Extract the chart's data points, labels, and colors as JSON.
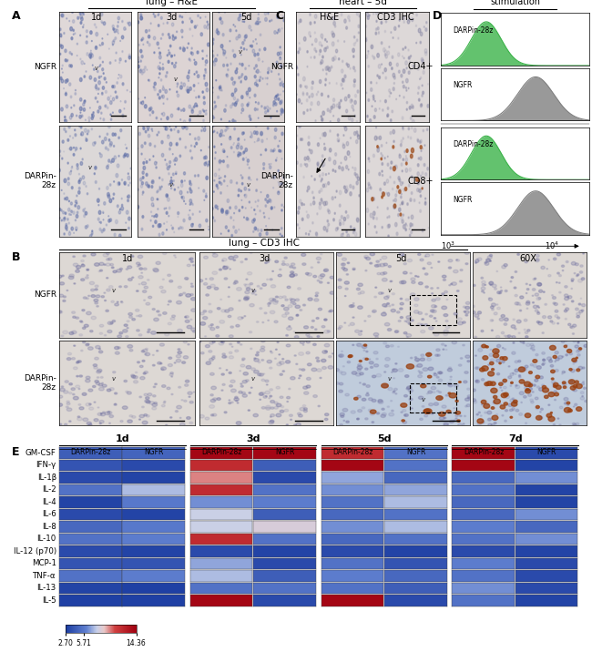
{
  "panel_labels": [
    "A",
    "B",
    "C",
    "D",
    "E"
  ],
  "panel_a_title": "lung – H&E",
  "panel_b_title": "lung – CD3 IHC",
  "panel_c_title": "heart – 5d",
  "panel_d_title": "lung homogenate\nstimulation",
  "time_points_abc": [
    "1d",
    "3d",
    "5d"
  ],
  "time_points_60x": "60X",
  "row_labels_ab": [
    "NGFR",
    "DARPin-\n28z"
  ],
  "col_labels_c": [
    "H&E",
    "CD3 IHC"
  ],
  "cytokines": [
    "GM-CSF",
    "IFN-γ",
    "IL-1β",
    "IL-2",
    "IL-4",
    "IL-6",
    "IL-8",
    "IL-10",
    "IL-12 (p70)",
    "MCP-1",
    "TNF-α",
    "IL-13",
    "IL-5"
  ],
  "time_groups": [
    "1d",
    "3d",
    "5d",
    "7d"
  ],
  "col_headers_e": [
    "DARPin-28z",
    "NGFR"
  ],
  "heatmap_vmin": 2.7,
  "heatmap_vmid": 5.71,
  "heatmap_vmax": 14.36,
  "heatmap_data": {
    "1d": {
      "DARPin-28z": [
        4.5,
        4.0,
        3.5,
        5.5,
        3.2,
        3.5,
        5.0,
        5.5,
        3.5,
        4.0,
        5.5,
        3.2,
        3.0
      ],
      "NGFR": [
        4.8,
        3.5,
        3.2,
        7.5,
        5.8,
        3.2,
        5.8,
        6.0,
        3.2,
        4.0,
        6.0,
        3.0,
        3.0
      ]
    },
    "3d": {
      "DARPin-28z": [
        14.0,
        12.0,
        10.0,
        12.0,
        6.5,
        8.0,
        8.0,
        12.0,
        3.5,
        7.0,
        7.5,
        5.5,
        14.0
      ],
      "NGFR": [
        14.0,
        4.5,
        3.5,
        5.5,
        6.0,
        4.5,
        8.5,
        5.5,
        3.2,
        3.5,
        4.5,
        5.5,
        3.5
      ]
    },
    "5d": {
      "DARPin-28z": [
        12.0,
        14.0,
        7.0,
        6.5,
        5.5,
        5.0,
        6.5,
        5.0,
        3.5,
        5.5,
        6.0,
        5.5,
        14.0
      ],
      "NGFR": [
        5.5,
        5.5,
        5.0,
        7.0,
        7.5,
        5.5,
        7.5,
        5.5,
        3.2,
        4.0,
        5.0,
        4.5,
        3.5
      ]
    },
    "7d": {
      "DARPin-28z": [
        14.0,
        14.0,
        5.0,
        5.5,
        5.0,
        5.0,
        6.0,
        5.5,
        3.5,
        6.0,
        5.5,
        6.5,
        5.5
      ],
      "NGFR": [
        3.5,
        3.2,
        6.5,
        3.2,
        3.2,
        6.5,
        5.0,
        6.5,
        3.2,
        3.5,
        3.5,
        3.5,
        3.2
      ]
    }
  },
  "flow_cd4_darpin_color": "#3cb34a",
  "flow_cd4_ngfr_color": "#808080",
  "flow_cd8_darpin_color": "#3cb34a",
  "flow_cd8_ngfr_color": "#808080",
  "background_color": "#ffffff"
}
